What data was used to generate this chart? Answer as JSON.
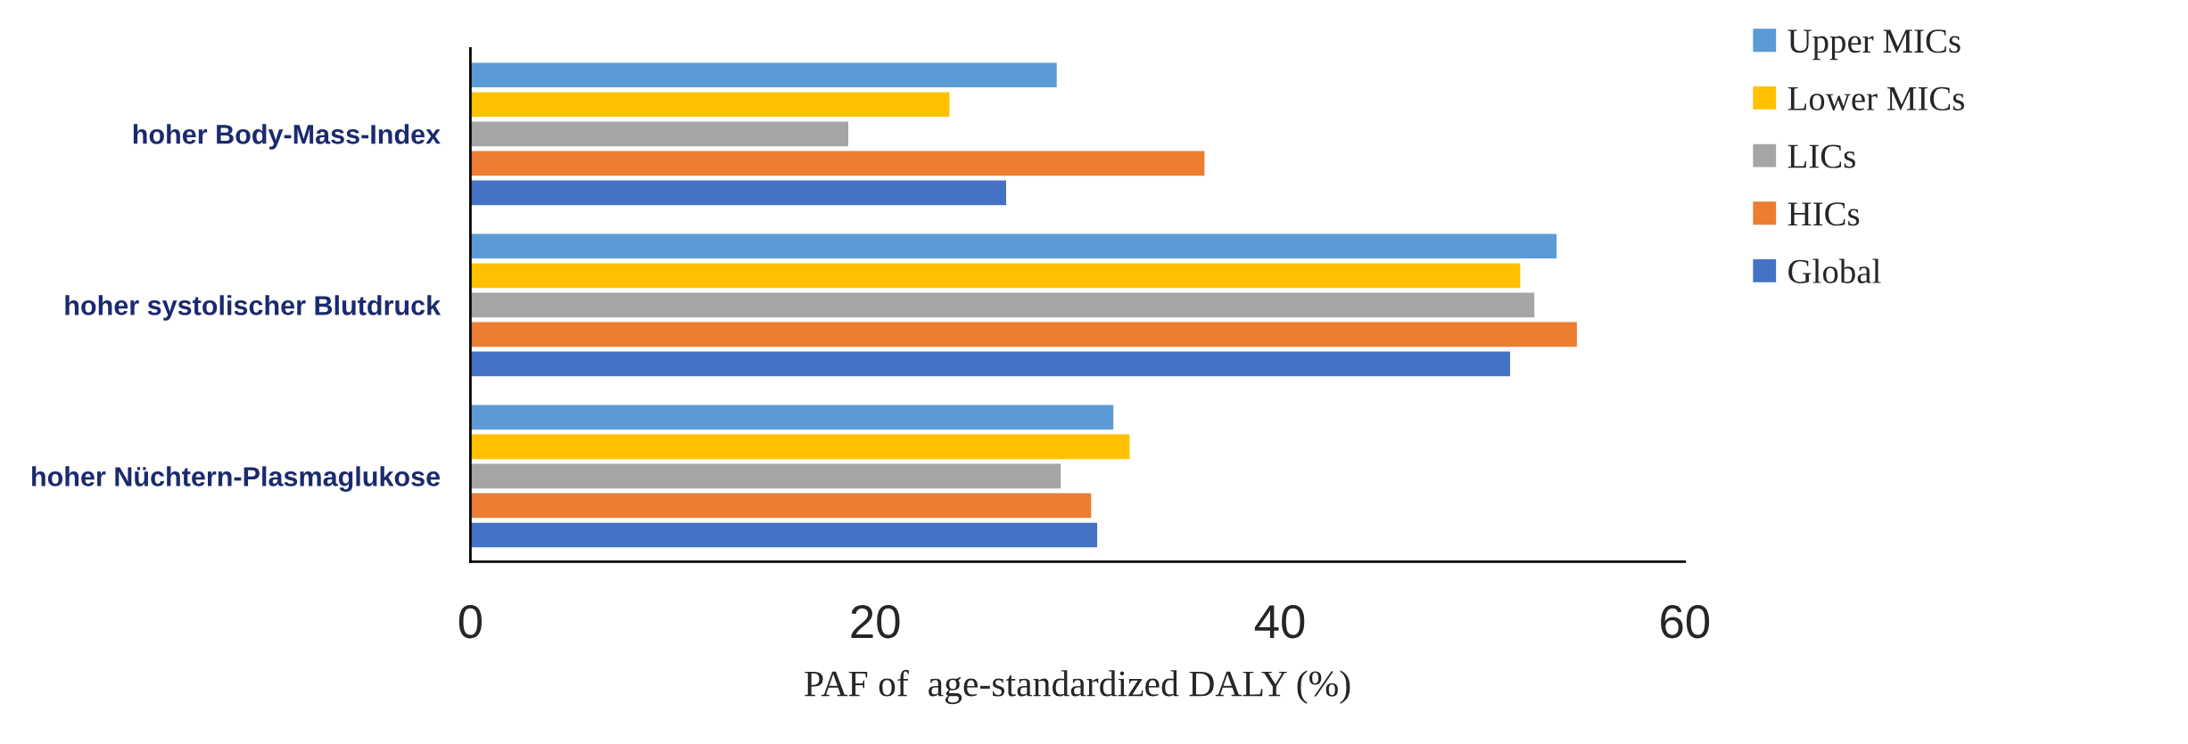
{
  "chart_data": {
    "type": "bar",
    "orientation": "horizontal",
    "xlabel": "PAF of  age-standardized DALY (%)",
    "categories": [
      "hoher Body-Mass-Index",
      "hoher systolischer Blutdruck",
      "hoher Nüchtern-Plasmaglukose"
    ],
    "series": [
      {
        "name": "Upper MICs",
        "color": "#5b9bd5",
        "values": [
          29.0,
          53.7,
          31.8
        ]
      },
      {
        "name": "Lower MICs",
        "color": "#ffc000",
        "values": [
          23.7,
          51.9,
          32.6
        ]
      },
      {
        "name": "LICs",
        "color": "#a5a5a5",
        "values": [
          18.7,
          52.6,
          29.2
        ]
      },
      {
        "name": "HICs",
        "color": "#ed7d31",
        "values": [
          36.3,
          54.7,
          30.7
        ]
      },
      {
        "name": "Global",
        "color": "#4472c4",
        "values": [
          26.5,
          51.4,
          31.0
        ]
      }
    ],
    "xlim": [
      0,
      60
    ],
    "xticks": [
      0,
      20,
      40,
      60
    ],
    "grid": false,
    "legend": "top right"
  }
}
